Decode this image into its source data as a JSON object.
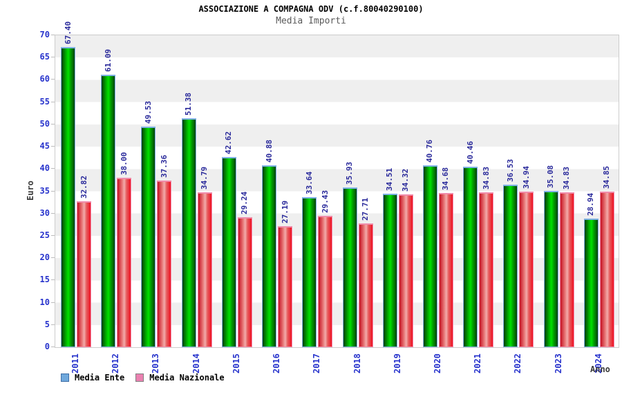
{
  "title": "ASSOCIAZIONE A COMPAGNA ODV (c.f.80040290100)",
  "subtitle": "Media Importi",
  "y_axis_label": "Euro",
  "x_axis_label": "Anno",
  "colors": {
    "axis_text": "#2733cc",
    "value_label": "#2a2a9b",
    "band_gray": "#efefef",
    "band_white": "#ffffff",
    "plot_border": "#cccccc",
    "tick_mark": "#bbbbbb",
    "series1_gradient": [
      "#063c06",
      "#00b200",
      "#00e100",
      "#00a600",
      "#074207"
    ],
    "series1_cap": "#7fb2e5",
    "series2_gradient": [
      "#c51022",
      "#e87878",
      "#f2abab",
      "#e66060",
      "#ee1022"
    ],
    "series2_cap": "#f08cab",
    "legend1_fill": "#6fa8dc",
    "legend1_border": "#3d6da6",
    "legend2_fill": "#ea80b0",
    "legend2_border": "#808080"
  },
  "chart_data": {
    "type": "bar",
    "categories": [
      "2011",
      "2012",
      "2013",
      "2014",
      "2015",
      "2016",
      "2017",
      "2018",
      "2019",
      "2020",
      "2021",
      "2022",
      "2023",
      "2024"
    ],
    "series": [
      {
        "name": "Media Ente",
        "values": [
          67.4,
          61.09,
          49.53,
          51.38,
          42.62,
          40.88,
          33.64,
          35.93,
          34.51,
          40.76,
          40.46,
          36.53,
          35.08,
          28.94
        ]
      },
      {
        "name": "Media Nazionale",
        "values": [
          32.82,
          38.0,
          37.36,
          34.79,
          29.24,
          27.19,
          29.43,
          27.71,
          34.32,
          34.68,
          34.83,
          34.94,
          34.83,
          34.85
        ]
      }
    ],
    "title": "ASSOCIAZIONE A COMPAGNA ODV (c.f.80040290100)",
    "subtitle": "Media Importi",
    "xlabel": "Anno",
    "ylabel": "Euro",
    "ylim": [
      0,
      70
    ],
    "ytick_step": 5,
    "yticks": [
      0,
      5,
      10,
      15,
      20,
      25,
      30,
      35,
      40,
      45,
      50,
      55,
      60,
      65,
      70
    ],
    "grid": "alternating horizontal bands",
    "legend_position": "bottom",
    "value_labels": "rotated 90deg above each bar, 2 decimals"
  }
}
